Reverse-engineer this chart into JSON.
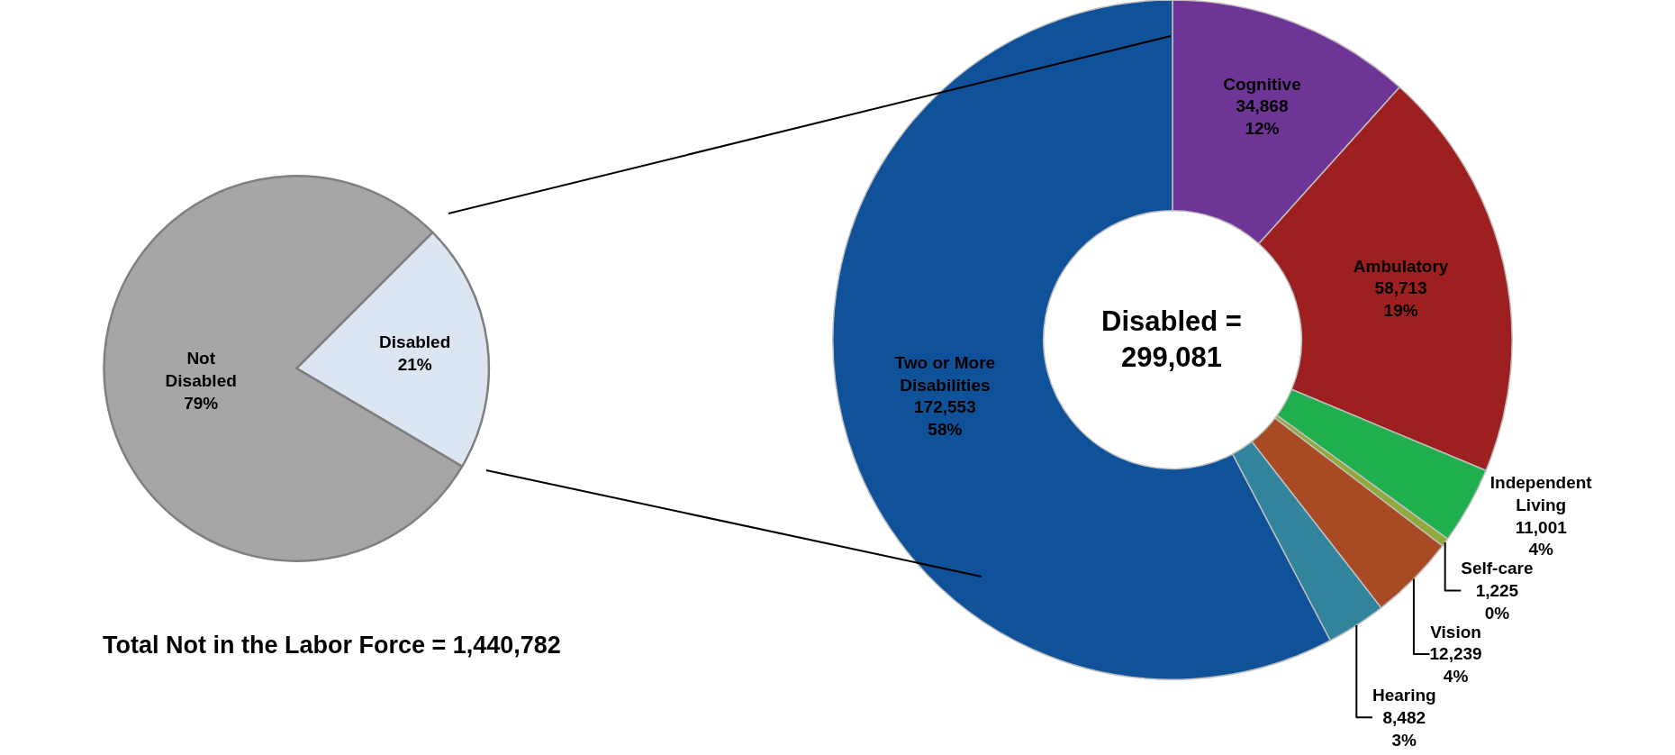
{
  "chart_data": [
    {
      "type": "pie",
      "categories": [
        "Disabled",
        "Not Disabled"
      ],
      "values": [
        21,
        79
      ],
      "colors": [
        "#dce6f2",
        "#a6a6a6"
      ],
      "value_labels": [
        "21%",
        "79%"
      ],
      "annotations": [
        "Total Not in the Labor Force = 1,440,782"
      ]
    },
    {
      "type": "donut",
      "categories": [
        "Cognitive",
        "Ambulatory",
        "Independent Living",
        "Self-care",
        "Vision",
        "Hearing",
        "Two or More Disabilities"
      ],
      "values": [
        34868,
        58713,
        11001,
        1225,
        12239,
        8482,
        172553
      ],
      "colors": [
        "#6f3596",
        "#9e1f20",
        "#1faf4f",
        "#8faa3a",
        "#a84a23",
        "#31849b",
        "#10529a"
      ],
      "value_labels": [
        "34,868\n12%",
        "58,713\n19%",
        "11,001\n4%",
        "1,225\n0%",
        "12,239\n4%",
        "8,482\n3%",
        "172,553\n58%"
      ],
      "annotations": [
        "Disabled =\n299,081"
      ]
    }
  ]
}
